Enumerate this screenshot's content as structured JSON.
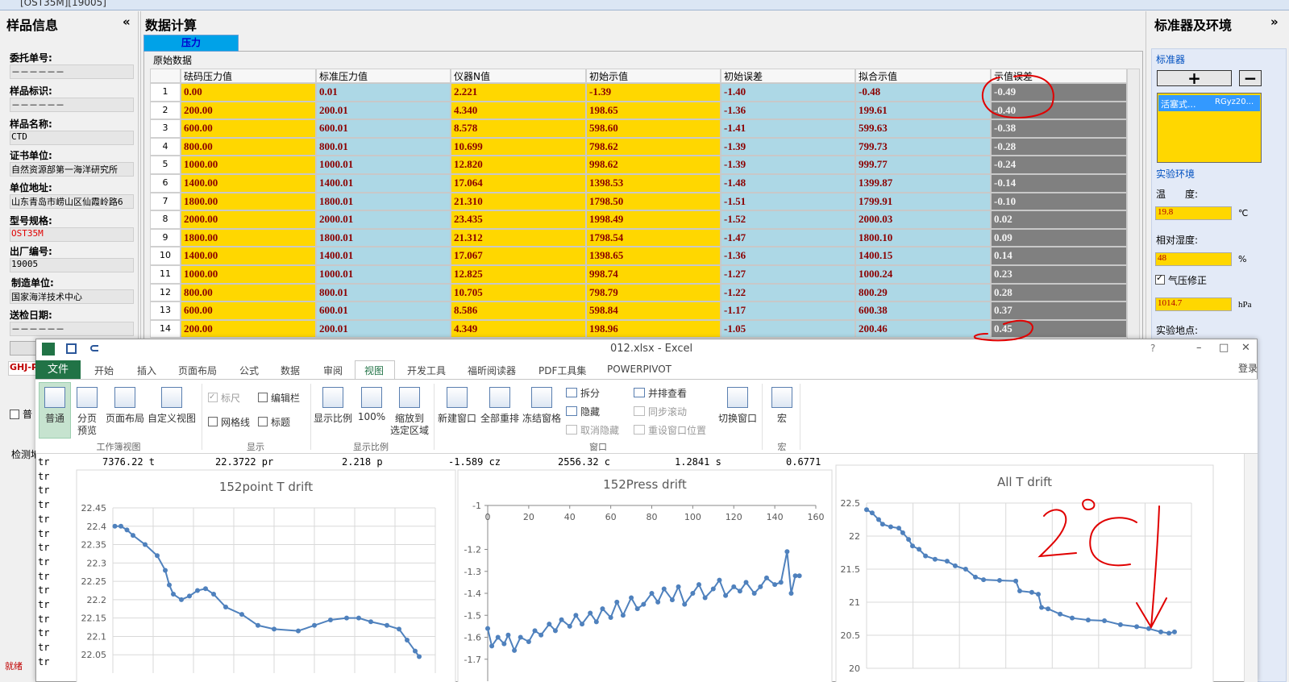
{
  "window_title": "[OST35M][19005]",
  "left_panel": {
    "title": "样品信息",
    "toggle": "«",
    "fields": [
      {
        "label": "委托单号:",
        "value": "－－－－－－"
      },
      {
        "label": "样品标识:",
        "value": "－－－－－－"
      },
      {
        "label": "样品名称:",
        "value": "CTD"
      },
      {
        "label": "证书单位:",
        "value": "自然资源部第一海洋研究所"
      },
      {
        "label": "单位地址:",
        "value": "山东青岛市崂山区仙霞岭路6"
      },
      {
        "label": "型号规格:",
        "value": "OST35M"
      },
      {
        "label": "出厂编号:",
        "value": "19005"
      },
      {
        "label": "制造单位:",
        "value": "国家海洋技术中心"
      },
      {
        "label": "送检日期:",
        "value": "－－－－－－"
      }
    ],
    "code": "GHJ-P",
    "check": "普",
    "test_place": "检测地",
    "status": "就绪"
  },
  "calc_panel": {
    "title": "数据计算",
    "tab": "压力",
    "section": "原始数据",
    "table": {
      "columns": [
        "砝码压力值",
        "标准压力值",
        "仪器N值",
        "初始示值",
        "初始误差",
        "拟合示值",
        "示值误差"
      ],
      "rows": [
        {
          "no": 1,
          "cells": [
            "0.00",
            "0.01",
            "2.221",
            "-1.39",
            "-1.40",
            "-0.48",
            "-0.49"
          ]
        },
        {
          "no": 2,
          "cells": [
            "200.00",
            "200.01",
            "4.340",
            "198.65",
            "-1.36",
            "199.61",
            "-0.40"
          ]
        },
        {
          "no": 3,
          "cells": [
            "600.00",
            "600.01",
            "8.578",
            "598.60",
            "-1.41",
            "599.63",
            "-0.38"
          ]
        },
        {
          "no": 4,
          "cells": [
            "800.00",
            "800.01",
            "10.699",
            "798.62",
            "-1.39",
            "799.73",
            "-0.28"
          ]
        },
        {
          "no": 5,
          "cells": [
            "1000.00",
            "1000.01",
            "12.820",
            "998.62",
            "-1.39",
            "999.77",
            "-0.24"
          ]
        },
        {
          "no": 6,
          "cells": [
            "1400.00",
            "1400.01",
            "17.064",
            "1398.53",
            "-1.48",
            "1399.87",
            "-0.14"
          ]
        },
        {
          "no": 7,
          "cells": [
            "1800.00",
            "1800.01",
            "21.310",
            "1798.50",
            "-1.51",
            "1799.91",
            "-0.10"
          ]
        },
        {
          "no": 8,
          "cells": [
            "2000.00",
            "2000.01",
            "23.435",
            "1998.49",
            "-1.52",
            "2000.03",
            "0.02"
          ]
        },
        {
          "no": 9,
          "cells": [
            "1800.00",
            "1800.01",
            "21.312",
            "1798.54",
            "-1.47",
            "1800.10",
            "0.09"
          ]
        },
        {
          "no": 10,
          "cells": [
            "1400.00",
            "1400.01",
            "17.067",
            "1398.65",
            "-1.36",
            "1400.15",
            "0.14"
          ]
        },
        {
          "no": 11,
          "cells": [
            "1000.00",
            "1000.01",
            "12.825",
            "998.74",
            "-1.27",
            "1000.24",
            "0.23"
          ]
        },
        {
          "no": 12,
          "cells": [
            "800.00",
            "800.01",
            "10.705",
            "798.79",
            "-1.22",
            "800.29",
            "0.28"
          ]
        },
        {
          "no": 13,
          "cells": [
            "600.00",
            "600.01",
            "8.586",
            "598.84",
            "-1.17",
            "600.38",
            "0.37"
          ]
        },
        {
          "no": 14,
          "cells": [
            "200.00",
            "200.01",
            "4.349",
            "198.96",
            "-1.05",
            "200.46",
            "0.45"
          ]
        }
      ],
      "column_colors": [
        "#ffd700",
        "#add8e6",
        "#ffd700",
        "#ffd700",
        "#add8e6",
        "#add8e6",
        "#808080"
      ]
    }
  },
  "right_panel": {
    "title": "标准器及环境",
    "toggle": "»",
    "standard_label": "标准器",
    "add": "+",
    "remove": "−",
    "list": [
      "活塞式...",
      "RGyz20..."
    ],
    "env_label": "实验环境",
    "temp_label": "温　　度:",
    "temp": "19.8",
    "temp_unit": "℃",
    "humidity_label": "相对湿度:",
    "humidity": "48",
    "humidity_unit": "%",
    "pressure_corr": "气压修正",
    "pressure": "1014.7",
    "pressure_unit": "hPa",
    "location_label": "实验地点:"
  },
  "excel": {
    "title": "012.xlsx - Excel",
    "help": "?",
    "login": "登录",
    "file_tab": "文件",
    "tabs": [
      "开始",
      "插入",
      "页面布局",
      "公式",
      "数据",
      "审阅",
      "视图",
      "开发工具",
      "福昕阅读器",
      "PDF工具集",
      "POWERPIVOT"
    ],
    "selected_tab": 6,
    "groups": [
      {
        "name": "工作簿视图",
        "items": [
          {
            "label": [
              "普通"
            ],
            "active": true
          },
          {
            "label": [
              "分页",
              "预览"
            ]
          },
          {
            "label": [
              "页面布局"
            ]
          },
          {
            "label": [
              "自定义视图"
            ]
          }
        ]
      },
      {
        "name": "显示",
        "checks": [
          {
            "label": "标尺",
            "checked": true,
            "disabled": true
          },
          {
            "label": "编辑栏",
            "checked": false
          },
          {
            "label": "网格线",
            "checked": false
          },
          {
            "label": "标题",
            "checked": false
          }
        ]
      },
      {
        "name": "显示比例",
        "items": [
          {
            "label": [
              "显示比例"
            ]
          },
          {
            "label": [
              "100%"
            ]
          },
          {
            "label": [
              "缩放到",
              "选定区域"
            ]
          }
        ]
      },
      {
        "name": "窗口",
        "items": [
          {
            "label": [
              "新建窗口"
            ]
          },
          {
            "label": [
              "全部重排"
            ]
          },
          {
            "label": [
              "冻结窗格"
            ]
          },
          {
            "label": [
              "切换窗口"
            ]
          }
        ],
        "small": [
          {
            "label": "拆分"
          },
          {
            "label": "隐藏"
          },
          {
            "label": "取消隐藏",
            "disabled": true
          },
          {
            "label": "并排查看"
          },
          {
            "label": "同步滚动",
            "disabled": true
          },
          {
            "label": "重设窗口位置",
            "disabled": true
          }
        ]
      },
      {
        "name": "宏",
        "items": [
          {
            "label": [
              "宏"
            ]
          }
        ]
      }
    ],
    "row_labels": [
      "tr",
      "tr",
      "tr",
      "tr",
      "tr",
      "tr",
      "tr",
      "tr",
      "tr",
      "tr",
      "tr",
      "tr",
      "tr",
      "tr",
      "tr"
    ],
    "first_row": [
      "7376.22 t",
      "22.3722 pr",
      "2.218 p",
      "-1.589 cz",
      "2556.32 c",
      "1.2841 s",
      "0.6771"
    ]
  },
  "chart_data": [
    {
      "type": "line",
      "title": "152point T drift",
      "color": "#4f81bd",
      "grid": true,
      "x": [
        1,
        4,
        7,
        10,
        16,
        22,
        26,
        28,
        30,
        34,
        38,
        42,
        46,
        50,
        56,
        64,
        72,
        80,
        92,
        100,
        108,
        116,
        122,
        128,
        136,
        142,
        146,
        150,
        152
      ],
      "values": [
        22.4,
        22.4,
        22.39,
        22.375,
        22.35,
        22.32,
        22.28,
        22.24,
        22.215,
        22.2,
        22.21,
        22.225,
        22.23,
        22.215,
        22.18,
        22.16,
        22.13,
        22.12,
        22.115,
        22.13,
        22.145,
        22.15,
        22.15,
        22.14,
        22.13,
        22.12,
        22.09,
        22.06,
        22.045
      ],
      "xlim": [
        0,
        160
      ],
      "ylim": [
        22,
        22.45
      ],
      "yticks": [
        22.05,
        22.1,
        22.15,
        22.2,
        22.25,
        22.3,
        22.35,
        22.4,
        22.45
      ]
    },
    {
      "type": "line",
      "title": "152Press drift",
      "color": "#4f81bd",
      "grid": false,
      "x": [
        0,
        2,
        5,
        8,
        10,
        13,
        16,
        20,
        23,
        26,
        30,
        33,
        36,
        40,
        43,
        46,
        50,
        53,
        56,
        60,
        63,
        66,
        70,
        73,
        76,
        80,
        83,
        86,
        90,
        93,
        96,
        100,
        103,
        106,
        110,
        113,
        116,
        120,
        123,
        126,
        130,
        133,
        136,
        140,
        143,
        146,
        148,
        150,
        152
      ],
      "values": [
        -1.56,
        -1.64,
        -1.6,
        -1.63,
        -1.59,
        -1.66,
        -1.6,
        -1.62,
        -1.57,
        -1.59,
        -1.54,
        -1.57,
        -1.52,
        -1.55,
        -1.5,
        -1.54,
        -1.49,
        -1.53,
        -1.47,
        -1.51,
        -1.44,
        -1.5,
        -1.42,
        -1.47,
        -1.45,
        -1.4,
        -1.44,
        -1.38,
        -1.43,
        -1.37,
        -1.45,
        -1.4,
        -1.36,
        -1.42,
        -1.38,
        -1.34,
        -1.41,
        -1.37,
        -1.39,
        -1.35,
        -1.4,
        -1.37,
        -1.33,
        -1.36,
        -1.35,
        -1.21,
        -1.4,
        -1.32,
        -1.32
      ],
      "xlim": [
        0,
        160
      ],
      "ylim": [
        -1.8,
        -1
      ],
      "xticks": [
        0,
        20,
        40,
        60,
        80,
        100,
        120,
        140,
        160
      ],
      "yticks": [
        -1,
        -1.2,
        -1.3,
        -1.4,
        -1.5,
        -1.6,
        -1.7
      ]
    },
    {
      "type": "line",
      "title": "All T drift",
      "color": "#4f81bd",
      "grid": true,
      "x": [
        0,
        24,
        52,
        69,
        104,
        139,
        156,
        181,
        198,
        226,
        254,
        295,
        347,
        382,
        427,
        469,
        504,
        573,
        643,
        660,
        712,
        740,
        754,
        782,
        834,
        886,
        955,
        1025,
        1094,
        1164,
        1216,
        1268,
        1303,
        1327
      ],
      "values": [
        22.4,
        22.35,
        22.25,
        22.18,
        22.14,
        22.12,
        22.05,
        21.95,
        21.85,
        21.8,
        21.7,
        21.65,
        21.62,
        21.55,
        21.5,
        21.38,
        21.34,
        21.33,
        21.32,
        21.17,
        21.15,
        21.12,
        20.92,
        20.9,
        20.82,
        20.76,
        20.73,
        20.72,
        20.66,
        20.63,
        20.6,
        20.55,
        20.53,
        20.55
      ],
      "xlim": [
        0,
        1400
      ],
      "ylim": [
        20,
        22.5
      ],
      "yticks": [
        20,
        20.5,
        21,
        21.5,
        22,
        22.5
      ]
    }
  ]
}
